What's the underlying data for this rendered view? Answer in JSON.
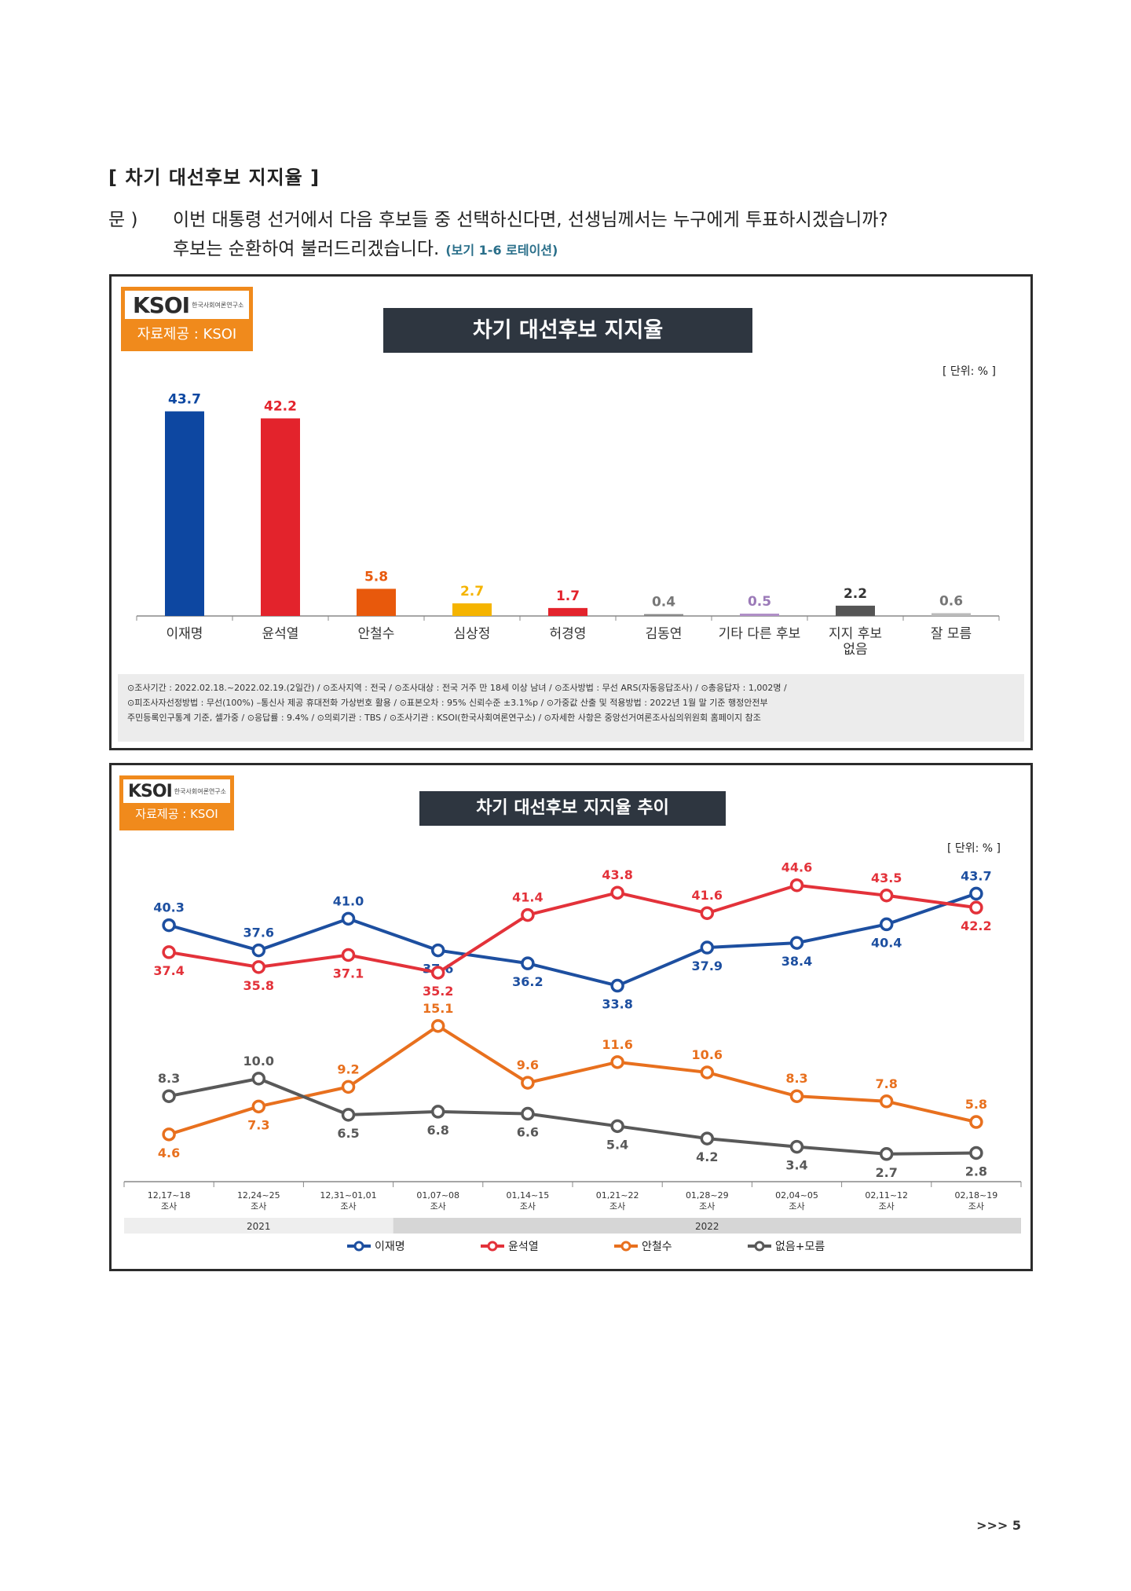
{
  "section_title": "[ 차기 대선후보 지지율 ]",
  "question": {
    "label": "문 )",
    "line1": "이번 대통령 선거에서 다음 후보들 중 선택하신다면, 선생님께서는 누구에게 투표하시겠습니까?",
    "line2": "후보는 순환하여 불러드리겠습니다.",
    "note": "(보기 1-6 로테이션)"
  },
  "logo": {
    "brand": "KSOI",
    "sub": "한국사회여론연구소",
    "credit": "자료제공 : KSOI"
  },
  "panel1": {
    "title": "차기 대선후보 지지율",
    "unit": "[ 단위: % ]",
    "footnote": [
      "⊙조사기간 : 2022.02.18.~2022.02.19.(2일간) / ⊙조사지역 : 전국 / ⊙조사대상 : 전국 거주 만 18세 이상 남녀 / ⊙조사방법 : 무선 ARS(자동응답조사) / ⊙총응답자 : 1,002명 /",
      "⊙피조사자선정방법 : 무선(100%) –통신사 제공 휴대전화 가상번호 활용 / ⊙표본오차 : 95% 신뢰수준 ±3.1%p / ⊙가중값 산출 및 적용방법 : 2022년 1월 말 기준 행정안전부",
      "주민등록인구통계 기준, 셀가중 / ⊙응답률 : 9.4% / ⊙의뢰기관 : TBS / ⊙조사기관 : KSOI(한국사회여론연구소) / ⊙자세한 사항은 중앙선거여론조사심의위원회 홈페이지 참조"
    ]
  },
  "panel2": {
    "title": "차기 대선후보 지지율 추이",
    "unit": "[ 단위: % ]"
  },
  "page_number": ">>> 5",
  "chart_data": [
    {
      "type": "bar",
      "title": "차기 대선후보 지지율",
      "unit": "[ 단위: % ]",
      "categories": [
        "이재명",
        "윤석열",
        "안철수",
        "심상정",
        "허경영",
        "김동연",
        "기타 다른 후보",
        "지지 후보 없음",
        "잘 모름"
      ],
      "values": [
        43.7,
        42.2,
        5.8,
        2.7,
        1.7,
        0.4,
        0.5,
        2.2,
        0.6
      ],
      "labels": [
        "43.7",
        "42.2",
        "5.8",
        "2.7",
        "1.7",
        "0.4",
        "0.5",
        "2.2",
        "0.6"
      ],
      "colors": [
        "#0d47a1",
        "#e3232c",
        "#e8590c",
        "#f5b400",
        "#e3232c",
        "#888888",
        "#b08fc7",
        "#555555",
        "#bbbbbb"
      ],
      "label_colors": [
        "#0d47a1",
        "#e3232c",
        "#e8590c",
        "#f5b400",
        "#e3232c",
        "#777777",
        "#9b7ab8",
        "#333333",
        "#777777"
      ],
      "ylim": [
        0,
        50
      ]
    },
    {
      "type": "line",
      "title": "차기 대선후보 지지율 추이",
      "unit": "[ 단위: % ]",
      "categories": [
        "12,17~18 조사",
        "12,24~25 조사",
        "12,31~01,01 조사",
        "01,07~08 조사",
        "01,14~15 조사",
        "01,21~22 조사",
        "01,28~29 조사",
        "02,04~05 조사",
        "02,11~12 조사",
        "02,18~19 조사"
      ],
      "tick_top": [
        "12,17~18",
        "12,24~25",
        "12,31~01,01",
        "01,07~08",
        "01,14~15",
        "01,21~22",
        "01,28~29",
        "02,04~05",
        "02,11~12",
        "02,18~19"
      ],
      "tick_bottom": "조사",
      "years": [
        {
          "label": "2021",
          "span": 3
        },
        {
          "label": "2022",
          "span": 7
        }
      ],
      "legend_position": "bottom",
      "series": [
        {
          "name": "이재명",
          "color": "#1d4fa0",
          "values": [
            40.3,
            37.6,
            41.0,
            37.6,
            36.2,
            33.8,
            37.9,
            38.4,
            40.4,
            43.7
          ],
          "labels": [
            "40.3",
            "37.6",
            "41.0",
            "37.6",
            "36.2",
            "33.8",
            "37.9",
            "38.4",
            "40.4",
            "43.7"
          ]
        },
        {
          "name": "윤석열",
          "color": "#e3323a",
          "values": [
            37.4,
            35.8,
            37.1,
            35.2,
            41.4,
            43.8,
            41.6,
            44.6,
            43.5,
            42.2
          ],
          "labels": [
            "37.4",
            "35.8",
            "37.1",
            "35.2",
            "41.4",
            "43.8",
            "41.6",
            "44.6",
            "43.5",
            "42.2"
          ]
        },
        {
          "name": "안철수",
          "color": "#e8701e",
          "values": [
            4.6,
            7.3,
            9.2,
            15.1,
            9.6,
            11.6,
            10.6,
            8.3,
            7.8,
            5.8
          ],
          "labels": [
            "4.6",
            "7.3",
            "9.2",
            "15.1",
            "9.6",
            "11.6",
            "10.6",
            "8.3",
            "7.8",
            "5.8"
          ]
        },
        {
          "name": "없음+모름",
          "color": "#595959",
          "values": [
            8.3,
            10.0,
            6.5,
            6.8,
            6.6,
            5.4,
            4.2,
            3.4,
            2.7,
            2.8
          ],
          "labels": [
            "8.3",
            "10.0",
            "6.5",
            "6.8",
            "6.6",
            "5.4",
            "4.2",
            "3.4",
            "2.7",
            "2.8"
          ]
        }
      ]
    }
  ]
}
